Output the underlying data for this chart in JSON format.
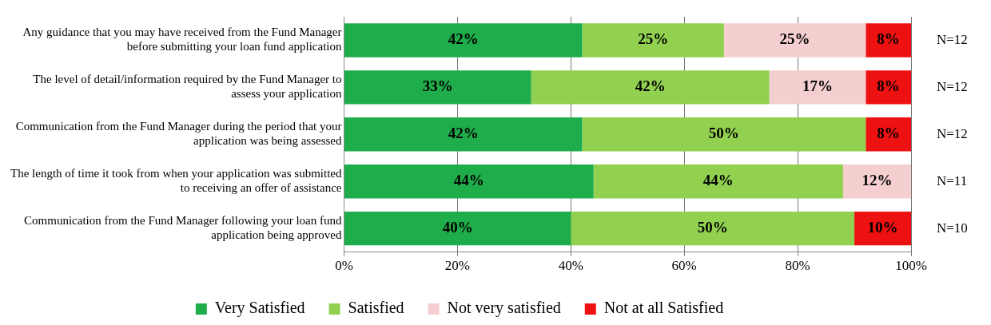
{
  "chart_data": {
    "type": "bar",
    "orientation": "horizontal",
    "stacked": true,
    "categories": [
      "Any guidance that you may have received from the Fund Manager before submitting your loan fund application",
      "The level of detail/information required by the Fund Manager to assess your application",
      "Communication from the Fund Manager during the period that your application was being assessed",
      "The length of time it took from when your application was submitted to receiving an offer of assistance",
      "Communication from the Fund Manager following your loan fund application being approved"
    ],
    "series": [
      {
        "name": "Very Satisfied",
        "color": "#1fad4b",
        "values": [
          42,
          33,
          42,
          44,
          40
        ],
        "value_labels": [
          "42%",
          "33%",
          "42%",
          "44%",
          "40%"
        ]
      },
      {
        "name": "Satisfied",
        "color": "#92d050",
        "values": [
          25,
          42,
          50,
          44,
          50
        ],
        "value_labels": [
          "25%",
          "42%",
          "50%",
          "44%",
          "50%"
        ]
      },
      {
        "name": "Not very satisfied",
        "color": "#f5cfcf",
        "values": [
          25,
          17,
          null,
          12,
          null
        ],
        "value_labels": [
          "25%",
          "17%",
          null,
          "12%",
          null
        ]
      },
      {
        "name": "Not at all Satisfied",
        "color": "#ee1111",
        "values": [
          8,
          8,
          8,
          null,
          10
        ],
        "value_labels": [
          "8%",
          "8%",
          "8%",
          null,
          "10%"
        ]
      }
    ],
    "xlim": [
      0,
      100
    ],
    "xticks": [
      {
        "value": 0,
        "label": "0%"
      },
      {
        "value": 20,
        "label": "20%"
      },
      {
        "value": 40,
        "label": "40%"
      },
      {
        "value": 60,
        "label": "60%"
      },
      {
        "value": 80,
        "label": "80%"
      },
      {
        "value": 100,
        "label": "100%"
      }
    ],
    "grid": "x",
    "legend": "bottom",
    "annotations": [
      "N=12",
      "N=12",
      "N=12",
      "N=11",
      "N=10"
    ]
  }
}
